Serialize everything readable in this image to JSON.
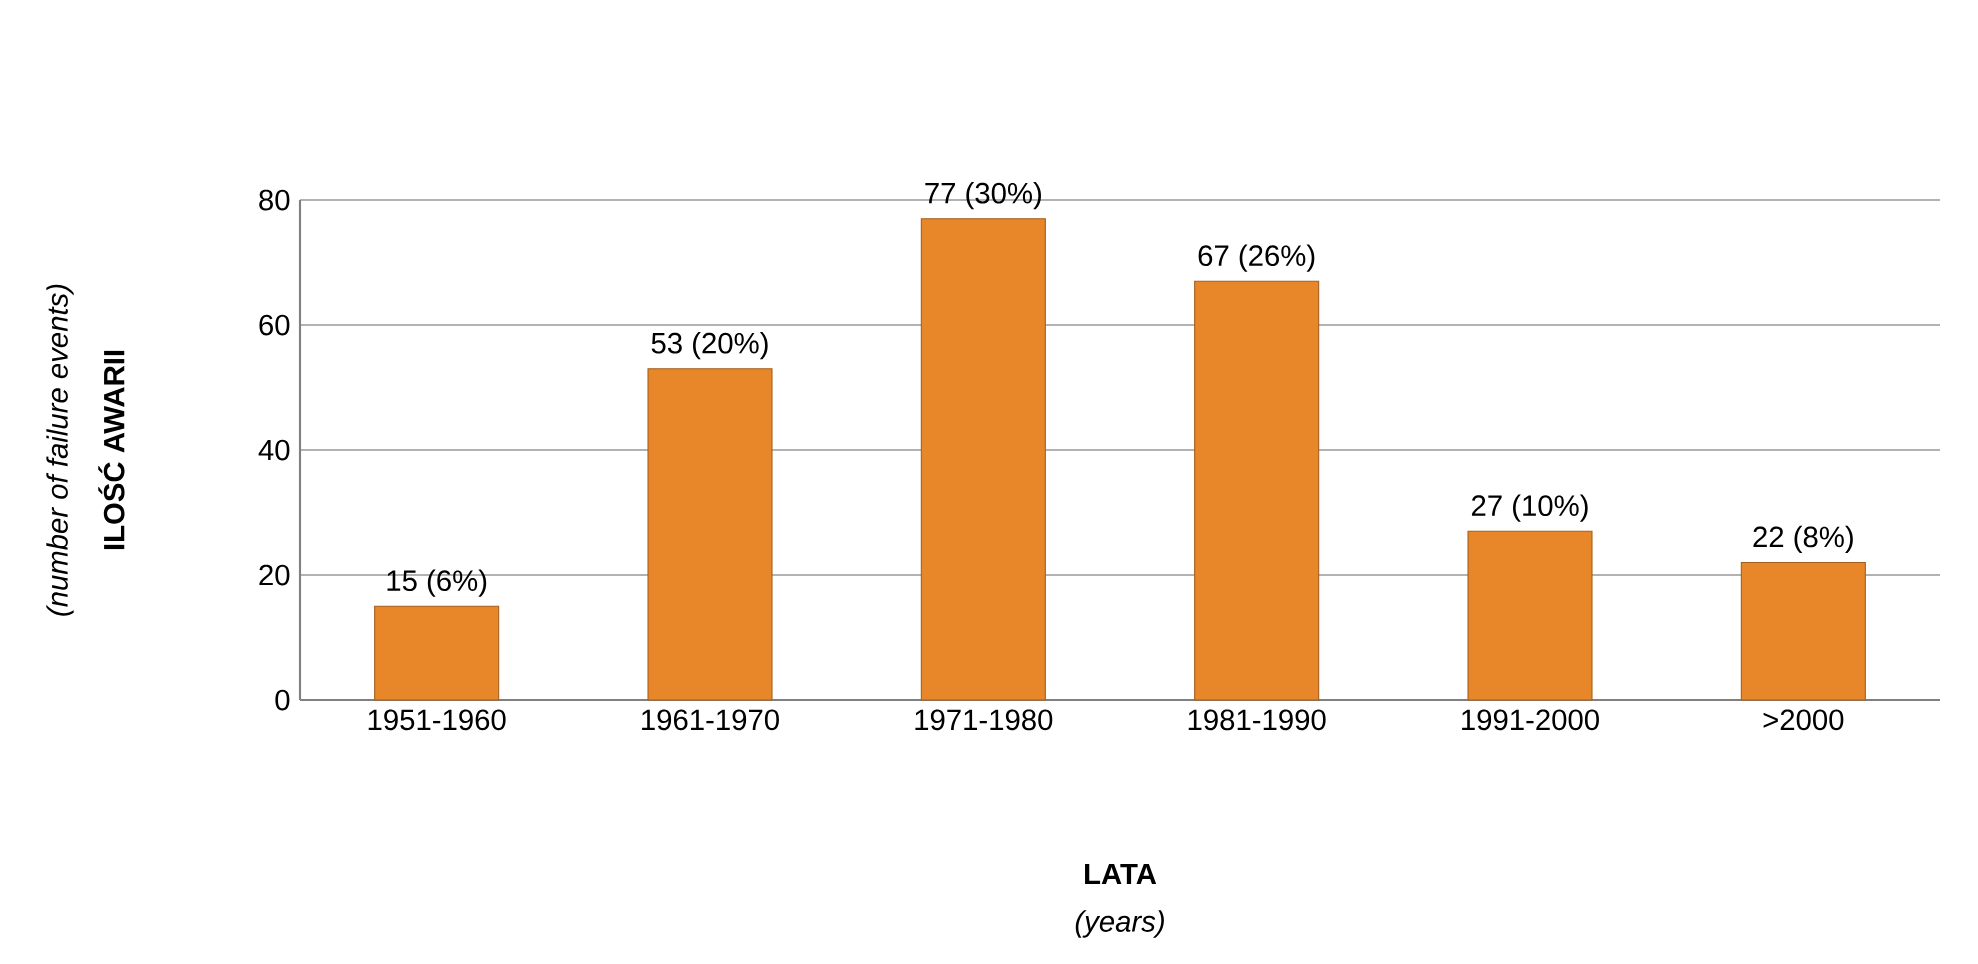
{
  "chart_data": {
    "type": "bar",
    "xlabel": "LATA",
    "ylabel": "ILOŚĆ AWARII",
    "annotations": [
      "(number of failure events)",
      "(years)"
    ],
    "categories": [
      "1951-1960",
      "1961-1970",
      "1971-1980",
      "1981-1990",
      "1991-2000",
      ">2000"
    ],
    "values": [
      15,
      53,
      77,
      67,
      27,
      22
    ],
    "value_labels": [
      "15 (6%)",
      "53 (20%)",
      "77 (30%)",
      "67 (26%)",
      "27 (10%)",
      "22 (8%)"
    ],
    "color": "#e8872a",
    "ylim": [
      0,
      80
    ],
    "yticks": [
      0,
      20,
      40,
      60,
      80
    ],
    "grid": "y"
  }
}
